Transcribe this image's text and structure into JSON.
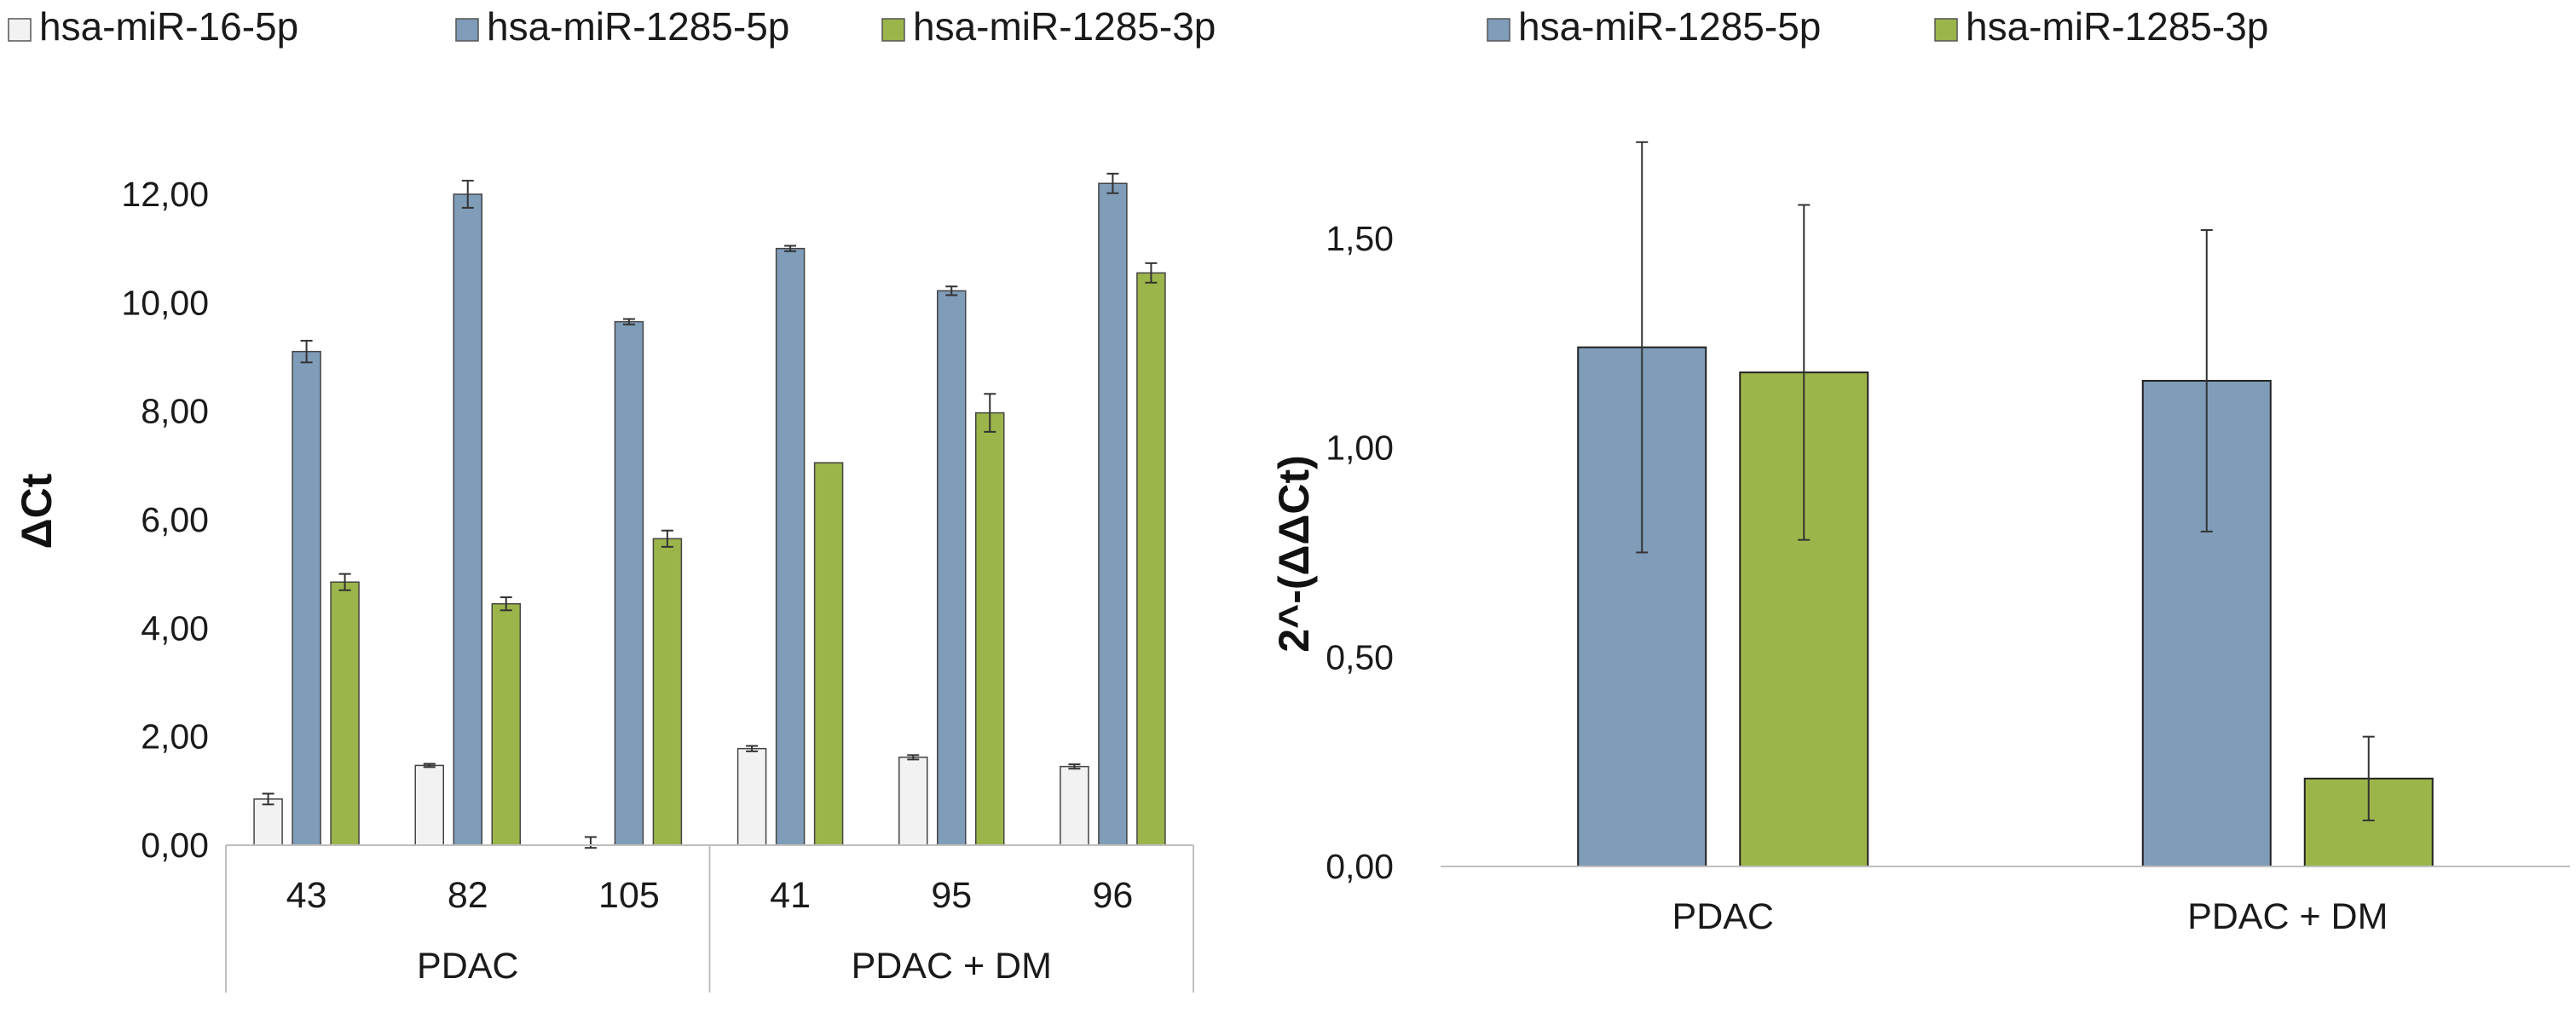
{
  "chart_data": [
    {
      "type": "bar",
      "ylabel": "ΔCt",
      "ylim": [
        0,
        12
      ],
      "ytick_step": 2,
      "ytick_labels": [
        "0,00",
        "2,00",
        "4,00",
        "6,00",
        "8,00",
        "10,00",
        "12,00"
      ],
      "grid": false,
      "legend_position": "top",
      "groups": [
        {
          "label": "PDAC",
          "categories": [
            "43",
            "82",
            "105"
          ]
        },
        {
          "label": "PDAC + DM",
          "categories": [
            "41",
            "95",
            "96"
          ]
        }
      ],
      "categories": [
        "43",
        "82",
        "105",
        "41",
        "95",
        "96"
      ],
      "series": [
        {
          "name": "hsa-miR-16-5p",
          "color": "#f2f2f2",
          "values": [
            0.85,
            1.47,
            0.0,
            1.78,
            1.62,
            1.45
          ],
          "errors": [
            0.1,
            0.03,
            0.15,
            0.05,
            0.04,
            0.04
          ]
        },
        {
          "name": "hsa-miR-1285-5p",
          "color": "#7f9cb8",
          "values": [
            9.1,
            12.0,
            9.65,
            11.0,
            10.22,
            12.2
          ],
          "errors": [
            0.2,
            0.25,
            0.05,
            0.05,
            0.08,
            0.18
          ]
        },
        {
          "name": "hsa-miR-1285-3p",
          "color": "#9bb54a",
          "values": [
            4.85,
            4.45,
            5.65,
            7.05,
            7.97,
            10.55
          ],
          "errors": [
            0.15,
            0.12,
            0.15,
            0.0,
            0.35,
            0.18
          ]
        }
      ]
    },
    {
      "type": "bar",
      "ylabel": "2^-(ΔΔCt)",
      "ylim": [
        0,
        1.75
      ],
      "ytick_step": 0.5,
      "ytick_labels": [
        "0,00",
        "0,50",
        "1,00",
        "1,50"
      ],
      "grid": false,
      "legend_position": "top",
      "categories": [
        "PDAC",
        "PDAC + DM"
      ],
      "series": [
        {
          "name": "hsa-miR-1285-5p",
          "color": "#7f9cb8",
          "values": [
            1.24,
            1.16
          ],
          "errors": [
            0.49,
            0.36
          ]
        },
        {
          "name": "hsa-miR-1285-3p",
          "color": "#9bb54a",
          "values": [
            1.18,
            0.21
          ],
          "errors": [
            0.4,
            0.1
          ]
        }
      ]
    }
  ]
}
